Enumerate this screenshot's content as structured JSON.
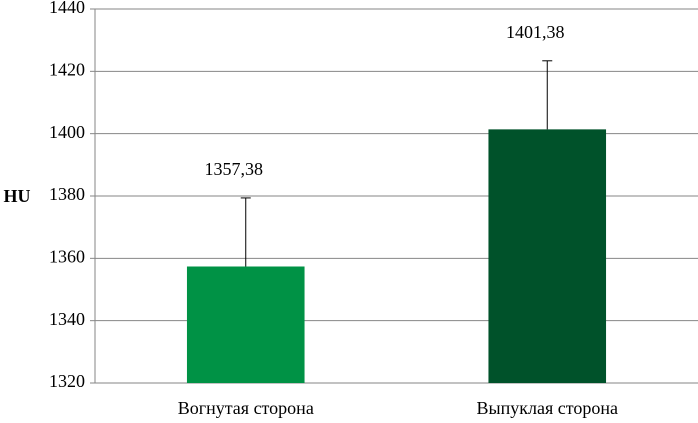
{
  "chart_data": {
    "type": "bar",
    "y_label": "HU",
    "categories": [
      "Вогнутая сторона",
      "Выпуклая сторона"
    ],
    "values": [
      1357.38,
      1401.38
    ],
    "value_labels": [
      "1357,38",
      "1401,38"
    ],
    "errors": [
      22,
      22
    ],
    "colors": [
      "#009245",
      "#00522a"
    ],
    "ylim": [
      1320,
      1440
    ],
    "yticks": [
      1320,
      1340,
      1360,
      1380,
      1400,
      1420,
      1440
    ],
    "grid": true
  }
}
